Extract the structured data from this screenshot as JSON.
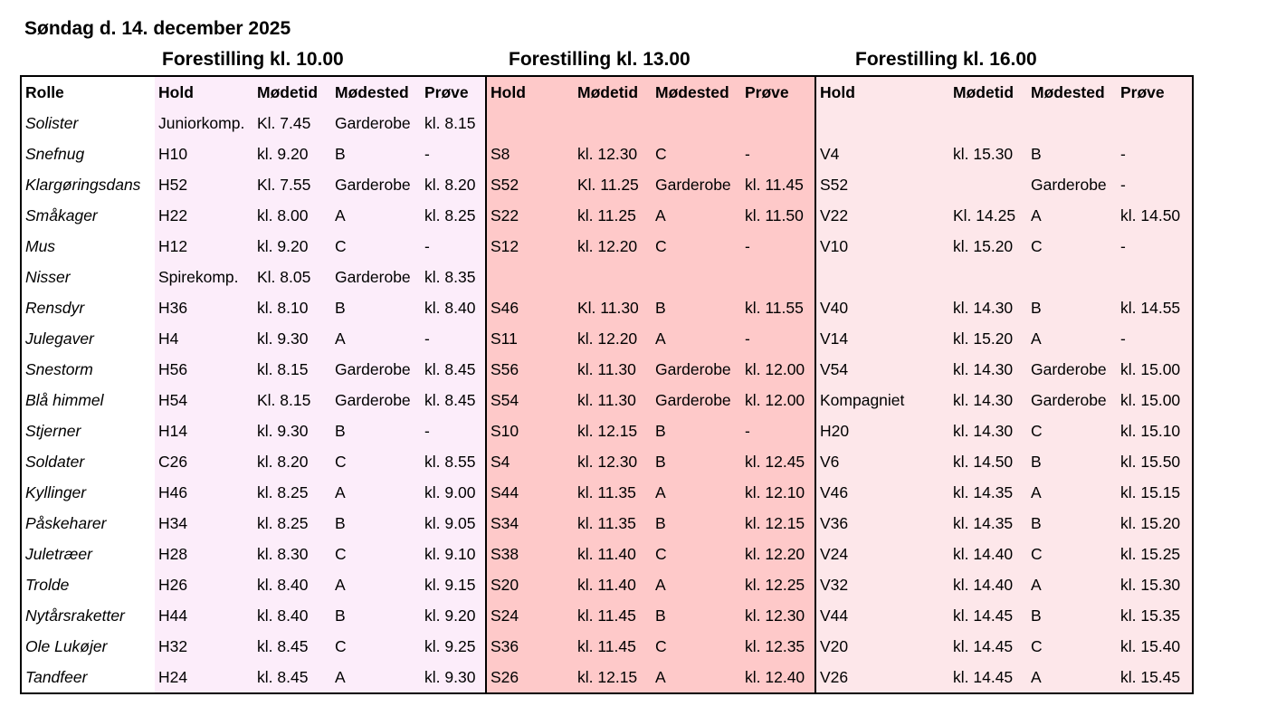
{
  "title": "Søndag d. 14. december 2025",
  "performances": [
    {
      "heading": "Forestilling kl. 10.00"
    },
    {
      "heading": "Forestilling kl. 13.00"
    },
    {
      "heading": "Forestilling kl. 16.00"
    }
  ],
  "headers": {
    "role": "Rolle",
    "hold": "Hold",
    "time": "Mødetid",
    "place": "Mødested",
    "test": "Prøve"
  },
  "rows": [
    {
      "role": "Solister",
      "p1": [
        "Juniorkomp.",
        "Kl. 7.45",
        "Garderobe",
        "kl. 8.15"
      ],
      "p2": [
        "",
        "",
        "",
        ""
      ],
      "p3": [
        "",
        "",
        "",
        ""
      ]
    },
    {
      "role": "Snefnug",
      "p1": [
        "H10",
        "kl. 9.20",
        "B",
        "-"
      ],
      "p2": [
        "S8",
        "kl. 12.30",
        "C",
        "-"
      ],
      "p3": [
        "V4",
        "kl. 15.30",
        "B",
        "-"
      ]
    },
    {
      "role": "Klargøringsdans",
      "p1": [
        "H52",
        "Kl. 7.55",
        "Garderobe",
        "kl. 8.20"
      ],
      "p2": [
        "S52",
        "Kl. 11.25",
        "Garderobe",
        "kl. 11.45"
      ],
      "p3": [
        "S52",
        "",
        "Garderobe",
        "-"
      ]
    },
    {
      "role": "Småkager",
      "p1": [
        "H22",
        "kl. 8.00",
        "A",
        "kl. 8.25"
      ],
      "p2": [
        "S22",
        "kl. 11.25",
        "A",
        "kl. 11.50"
      ],
      "p3": [
        "V22",
        "Kl. 14.25",
        "A",
        "kl. 14.50"
      ]
    },
    {
      "role": "Mus",
      "p1": [
        "H12",
        "kl. 9.20",
        "C",
        "-"
      ],
      "p2": [
        "S12",
        "kl. 12.20",
        "C",
        "-"
      ],
      "p3": [
        "V10",
        "kl. 15.20",
        "C",
        "-"
      ]
    },
    {
      "role": "Nisser",
      "p1": [
        "Spirekomp.",
        "Kl. 8.05",
        "Garderobe",
        "kl. 8.35"
      ],
      "p2": [
        "",
        "",
        "",
        ""
      ],
      "p3": [
        "",
        "",
        "",
        ""
      ]
    },
    {
      "role": "Rensdyr",
      "p1": [
        "H36",
        "kl. 8.10",
        "B",
        "kl. 8.40"
      ],
      "p2": [
        "S46",
        "Kl. 11.30",
        "B",
        "kl. 11.55"
      ],
      "p3": [
        "V40",
        "kl. 14.30",
        "B",
        "kl. 14.55"
      ]
    },
    {
      "role": "Julegaver",
      "p1": [
        "H4",
        "kl. 9.30",
        "A",
        "-"
      ],
      "p2": [
        "S11",
        "kl. 12.20",
        "A",
        "-"
      ],
      "p3": [
        "V14",
        "kl. 15.20",
        "A",
        "-"
      ]
    },
    {
      "role": "Snestorm",
      "p1": [
        "H56",
        "kl. 8.15",
        "Garderobe",
        "kl. 8.45"
      ],
      "p2": [
        "S56",
        "kl. 11.30",
        "Garderobe",
        "kl. 12.00"
      ],
      "p3": [
        "V54",
        "kl. 14.30",
        "Garderobe",
        "kl. 15.00"
      ]
    },
    {
      "role": "Blå himmel",
      "p1": [
        "H54",
        "Kl. 8.15",
        "Garderobe",
        "kl. 8.45"
      ],
      "p2": [
        "S54",
        "kl. 11.30",
        "Garderobe",
        "kl. 12.00"
      ],
      "p3": [
        "Kompagniet",
        "kl. 14.30",
        "Garderobe",
        "kl. 15.00"
      ]
    },
    {
      "role": "Stjerner",
      "p1": [
        "H14",
        "kl. 9.30",
        "B",
        "-"
      ],
      "p2": [
        "S10",
        "kl. 12.15",
        "B",
        "-"
      ],
      "p3": [
        "H20",
        "kl. 14.30",
        "C",
        "kl. 15.10"
      ]
    },
    {
      "role": "Soldater",
      "p1": [
        "C26",
        "kl. 8.20",
        "C",
        "kl. 8.55"
      ],
      "p2": [
        "S4",
        "kl. 12.30",
        "B",
        "kl. 12.45"
      ],
      "p3": [
        "V6",
        "kl. 14.50",
        "B",
        "kl. 15.50"
      ]
    },
    {
      "role": "Kyllinger",
      "p1": [
        "H46",
        "kl. 8.25",
        "A",
        "kl. 9.00"
      ],
      "p2": [
        "S44",
        "kl. 11.35",
        "A",
        "kl. 12.10"
      ],
      "p3": [
        "V46",
        "kl. 14.35",
        "A",
        "kl. 15.15"
      ]
    },
    {
      "role": "Påskeharer",
      "p1": [
        "H34",
        "kl. 8.25",
        "B",
        "kl. 9.05"
      ],
      "p2": [
        "S34",
        "kl. 11.35",
        "B",
        "kl. 12.15"
      ],
      "p3": [
        "V36",
        "kl. 14.35",
        "B",
        "kl. 15.20"
      ]
    },
    {
      "role": "Juletræer",
      "p1": [
        "H28",
        "kl. 8.30",
        "C",
        "kl. 9.10"
      ],
      "p2": [
        "S38",
        "kl. 11.40",
        "C",
        "kl. 12.20"
      ],
      "p3": [
        "V24",
        "kl. 14.40",
        "C",
        "kl. 15.25"
      ]
    },
    {
      "role": "Trolde",
      "p1": [
        "H26",
        "kl. 8.40",
        "A",
        "kl. 9.15"
      ],
      "p2": [
        "S20",
        "kl. 11.40",
        "A",
        "kl. 12.25"
      ],
      "p3": [
        "V32",
        "kl. 14.40",
        "A",
        "kl. 15.30"
      ]
    },
    {
      "role": "Nytårsraketter",
      "p1": [
        "H44",
        "kl. 8.40",
        "B",
        "kl. 9.20"
      ],
      "p2": [
        "S24",
        "kl. 11.45",
        "B",
        "kl. 12.30"
      ],
      "p3": [
        "V44",
        "kl. 14.45",
        "B",
        "kl. 15.35"
      ]
    },
    {
      "role": "Ole Lukøjer",
      "p1": [
        "H32",
        "kl. 8.45",
        "C",
        "kl. 9.25"
      ],
      "p2": [
        "S36",
        "kl. 11.45",
        "C",
        "kl. 12.35"
      ],
      "p3": [
        "V20",
        "kl. 14.45",
        "C",
        "kl. 15.40"
      ]
    },
    {
      "role": "Tandfeer",
      "p1": [
        "H24",
        "kl. 8.45",
        "A",
        "kl. 9.30"
      ],
      "p2": [
        "S26",
        "kl. 12.15",
        "A",
        "kl. 12.40"
      ],
      "p3": [
        "V26",
        "kl. 14.45",
        "A",
        "kl. 15.45"
      ]
    }
  ]
}
